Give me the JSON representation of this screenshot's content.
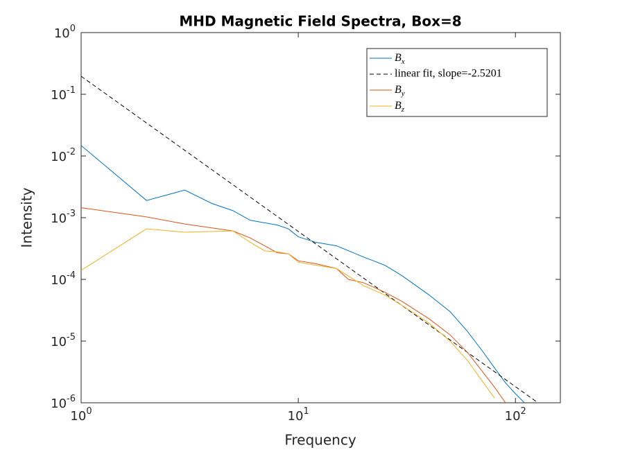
{
  "chart_data": {
    "type": "line",
    "title": "MHD Magnetic Field Spectra, Box=8",
    "xlabel": "Frequency",
    "ylabel": "Intensity",
    "xscale": "log",
    "yscale": "log",
    "xlim": [
      1,
      161
    ],
    "ylim": [
      1e-06,
      1
    ],
    "xticks": [
      {
        "value": 1,
        "label": "10^0"
      },
      {
        "value": 10,
        "label": "10^1"
      },
      {
        "value": 100,
        "label": "10^2"
      }
    ],
    "yticks": [
      {
        "value": 1e-06,
        "label": "10^-6"
      },
      {
        "value": 1e-05,
        "label": "10^-5"
      },
      {
        "value": 0.0001,
        "label": "10^-4"
      },
      {
        "value": 0.001,
        "label": "10^-3"
      },
      {
        "value": 0.01,
        "label": "10^-2"
      },
      {
        "value": 0.1,
        "label": "10^-1"
      },
      {
        "value": 1,
        "label": "10^0"
      }
    ],
    "legend": "northeast",
    "series": [
      {
        "name": "B_x",
        "color": "#0072bd",
        "dash": false,
        "x": [
          1,
          2,
          3,
          4,
          5,
          6,
          8,
          9,
          10,
          12,
          15,
          20,
          25,
          30,
          40,
          50,
          60,
          70,
          80,
          90,
          100,
          110
        ],
        "values": [
          0.0148,
          0.0019,
          0.0028,
          0.0017,
          0.0013,
          0.00091,
          0.00076,
          0.00066,
          0.00049,
          0.0004,
          0.00035,
          0.00023,
          0.00017,
          0.000115,
          5.6e-05,
          3e-05,
          1.45e-05,
          7.1e-06,
          3.7e-06,
          2.1e-06,
          1.4e-06,
          1e-06
        ]
      },
      {
        "name": "linear fit, slope=-2.5201",
        "color": "#000000",
        "dash": true,
        "x": [
          1,
          127
        ],
        "values": [
          0.196,
          1e-06
        ]
      },
      {
        "name": "B_y",
        "color": "#d95319",
        "dash": false,
        "x": [
          1,
          2,
          3,
          5,
          6,
          7,
          8,
          9,
          10,
          12,
          15,
          17,
          20,
          25,
          30,
          40,
          50,
          60,
          70,
          80,
          90
        ],
        "values": [
          0.00145,
          0.00103,
          0.00079,
          0.00061,
          0.00047,
          0.00035,
          0.00027,
          0.00026,
          0.0002,
          0.00018,
          0.00015,
          0.0001,
          8.8e-05,
          6.2e-05,
          4.4e-05,
          2.3e-05,
          1.26e-05,
          6.6e-06,
          3.3e-06,
          1.8e-06,
          1e-06
        ]
      },
      {
        "name": "B_z",
        "color": "#edb120",
        "dash": false,
        "x": [
          1,
          2,
          3,
          5,
          6,
          7,
          8,
          9,
          10,
          12,
          15,
          20,
          25,
          30,
          40,
          50,
          60,
          70,
          80
        ],
        "values": [
          0.00014,
          0.00066,
          0.00058,
          0.00061,
          0.0004,
          0.00029,
          0.00028,
          0.00026,
          0.00019,
          0.00017,
          0.00015,
          7.9e-05,
          5.6e-05,
          3.8e-05,
          1.95e-05,
          1e-05,
          4.9e-06,
          2.3e-06,
          1.2e-06
        ]
      }
    ]
  }
}
